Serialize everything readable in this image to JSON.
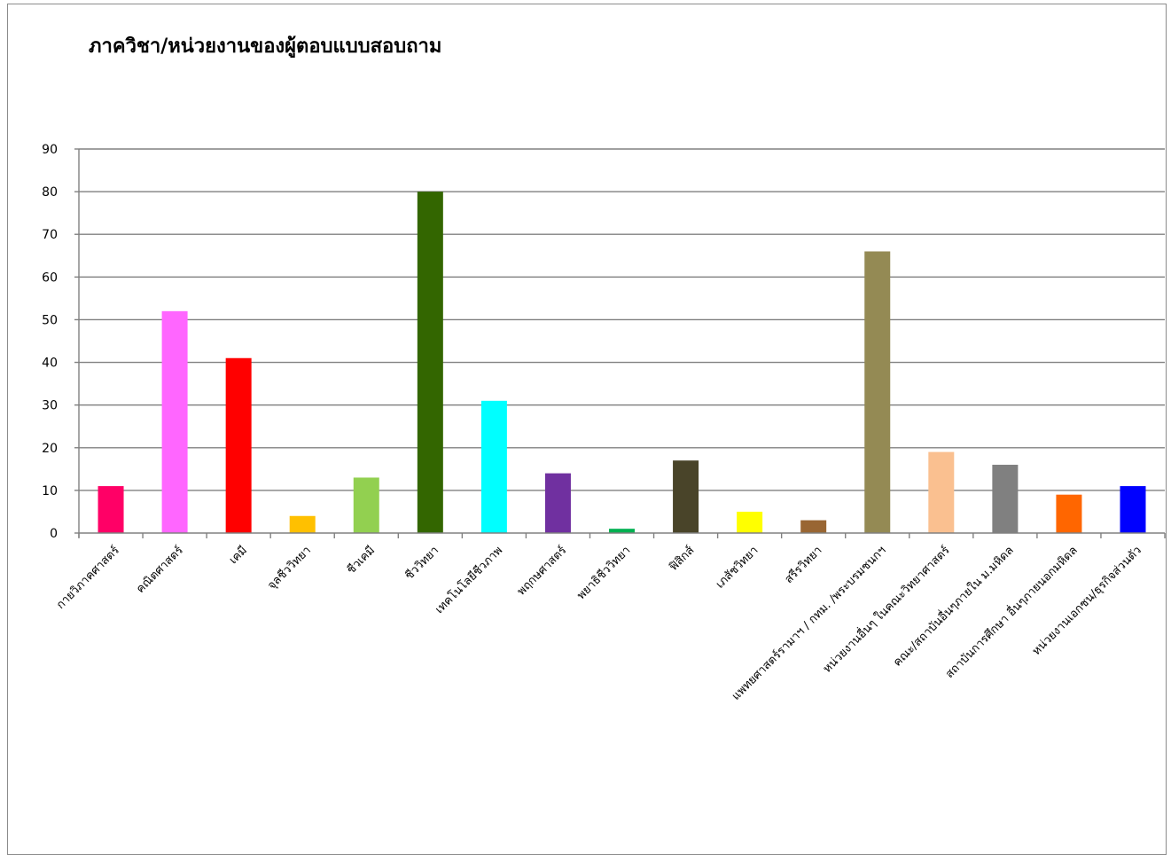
{
  "chart_data": {
    "type": "bar",
    "title": "ภาควิชา/หน่วยงานของผู้ตอบแบบสอบถาม",
    "xlabel": "",
    "ylabel": "",
    "ylim": [
      0,
      90
    ],
    "yticks": [
      0,
      10,
      20,
      30,
      40,
      50,
      60,
      70,
      80,
      90
    ],
    "grid": true,
    "legend": "none",
    "categories": [
      "กายวิภาคศาสตร์",
      "คณิตศาสตร์",
      "เคมี",
      "จุลชีววิทยา",
      "ชีวเคมี",
      "ชีววิทยา",
      "เทคโนโลยีชีวภาพ",
      "พฤกษศาสตร์",
      "พยาธิชีววิทยา",
      "ฟิสิกส์",
      "เภสัชวิทยา",
      "สรีรวิทยา",
      "แพทยศาสตร์รามาฯ / กทม. /พระบรมชนกฯ",
      "หน่วยงานอื่นๆ ในคณะวิทยาศาสตร์",
      "คณะ/สถาบันอื่นๆภายใน ม.มหิดล",
      "สถาบันการศึกษา อื่นๆภายนอกมหิดล",
      "หน่วยงานเอกชน/ธุรกิจส่วนตัว"
    ],
    "values": [
      11,
      52,
      41,
      4,
      13,
      80,
      31,
      14,
      1,
      17,
      5,
      3,
      66,
      19,
      16,
      9,
      11
    ],
    "colors": [
      "#ff0066",
      "#ff66ff",
      "#ff0000",
      "#ffc000",
      "#92d050",
      "#336600",
      "#00ffff",
      "#7030a0",
      "#00b050",
      "#494429",
      "#ffff00",
      "#996633",
      "#948a54",
      "#fac090",
      "#808080",
      "#ff6600",
      "#0000ff"
    ]
  }
}
